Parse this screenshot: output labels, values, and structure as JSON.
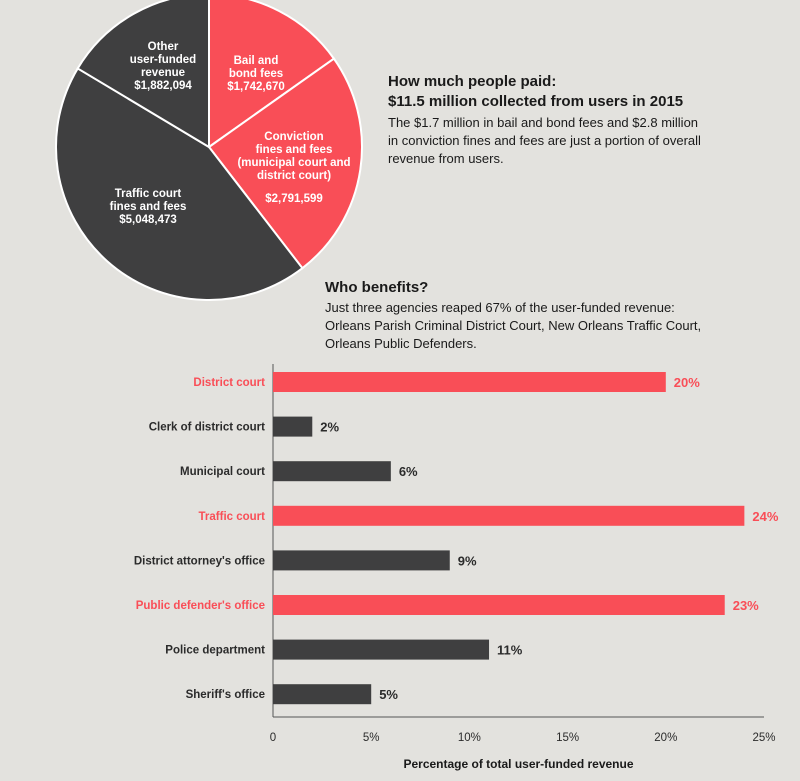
{
  "colors": {
    "red": "#f94e57",
    "dark": "#3f3f40",
    "bg": "#e3e2de",
    "axis": "#555555"
  },
  "chart_data": [
    {
      "type": "pie",
      "slices": [
        {
          "label_lines": [
            "Bail and",
            "bond fees"
          ],
          "value_label": "$1,742,670",
          "value": 1742670,
          "color": "red"
        },
        {
          "label_lines": [
            "Conviction",
            "fines and fees",
            "(municipal court and",
            "district court)"
          ],
          "value_label": "$2,791,599",
          "value": 2791599,
          "color": "red"
        },
        {
          "label_lines": [
            "Traffic court",
            "fines and fees"
          ],
          "value_label": "$5,048,473",
          "value": 5048473,
          "color": "dark"
        },
        {
          "label_lines": [
            "Other",
            "user-funded",
            "revenue"
          ],
          "value_label": "$1,882,094",
          "value": 1882094,
          "color": "dark"
        }
      ]
    },
    {
      "type": "bar",
      "orientation": "horizontal",
      "categories": [
        "District court",
        "Clerk of district court",
        "Municipal court",
        "Traffic court",
        "District attorney's office",
        "Public defender's office",
        "Police department",
        "Sheriff's office"
      ],
      "values": [
        20,
        2,
        6,
        24,
        9,
        23,
        11,
        5
      ],
      "value_labels": [
        "20%",
        "2%",
        "6%",
        "24%",
        "9%",
        "23%",
        "11%",
        "5%"
      ],
      "highlight": [
        true,
        false,
        false,
        true,
        false,
        true,
        false,
        false
      ],
      "xlim": [
        0,
        25
      ],
      "xticks": [
        0,
        5,
        10,
        15,
        20,
        25
      ],
      "xtick_labels": [
        "0",
        "5%",
        "10%",
        "15%",
        "20%",
        "25%"
      ],
      "xlabel": "Percentage of total user-funded revenue"
    }
  ],
  "paid": {
    "heading": "How much people paid:",
    "subheading": "$11.5 million collected from users in 2015",
    "body": [
      "The $1.7 million in bail and bond fees and $2.8 million",
      "in conviction fines and fees are just a portion of overall",
      "revenue from users."
    ]
  },
  "benefits": {
    "heading": "Who benefits?",
    "body": [
      "Just three agencies reaped 67% of the user-funded revenue:",
      "Orleans Parish Criminal District Court, New Orleans Traffic Court,",
      "Orleans Public Defenders."
    ]
  }
}
